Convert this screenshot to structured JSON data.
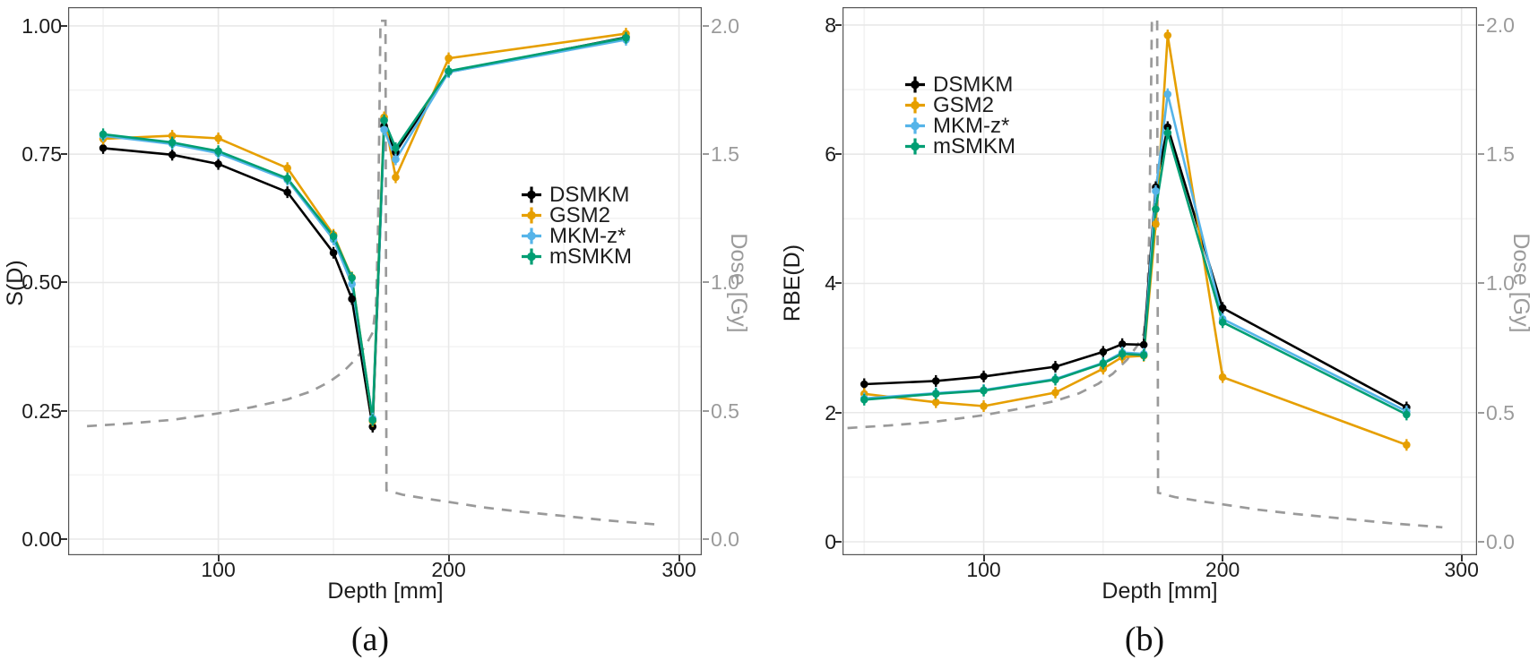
{
  "figure": {
    "captions": {
      "a": "(a)",
      "b": "(b)"
    },
    "colors": {
      "background": "#ffffff",
      "grid_major": "#e8e8e8",
      "grid_minor": "#f3f3f3",
      "panel_border": "#555555",
      "dose_line": "#9a9a9a",
      "axis_text": "#1d1d1d",
      "secondary_axis_text": "#9b9b9b"
    }
  },
  "legend": {
    "entries": [
      {
        "label": "DSMKM",
        "color": "#000000"
      },
      {
        "label": "GSM2",
        "color": "#E69F00"
      },
      {
        "label": "MKM-z*",
        "color": "#56B4E9"
      },
      {
        "label": "mSMKM",
        "color": "#009E73"
      }
    ]
  },
  "chart_data": [
    {
      "type": "line",
      "panel": "a",
      "xlabel": "Depth [mm]",
      "ylabel": "S(D)",
      "y2label": "Dose [Gy]",
      "xlim": [
        34.8,
        309.9
      ],
      "ylim": [
        -0.0314,
        1.0366
      ],
      "y2lim": [
        -0.0628,
        2.0732
      ],
      "xticks": {
        "major": [
          100,
          200,
          300
        ],
        "minor": [
          50,
          150,
          250
        ],
        "labels": [
          "100",
          "200",
          "300"
        ]
      },
      "yticks": {
        "major": [
          0,
          0.25,
          0.5,
          0.75,
          1.0
        ],
        "minor": [
          0.125,
          0.375,
          0.625,
          0.875
        ],
        "labels": [
          "0.00",
          "0.25",
          "0.50",
          "0.75",
          "1.00"
        ]
      },
      "y2ticks": {
        "major": [
          0,
          0.5,
          1.0,
          1.5,
          2.0
        ],
        "labels": [
          "0.0",
          "0.5",
          "1.0",
          "1.5",
          "2.0"
        ]
      },
      "x": [
        50,
        80,
        100,
        130,
        150,
        158,
        167,
        172,
        177,
        200,
        277
      ],
      "series": [
        {
          "name": "DSMKM",
          "color": "#000000",
          "values": [
            0.762,
            0.749,
            0.731,
            0.676,
            0.558,
            0.468,
            0.219,
            0.805,
            0.754,
            0.91,
            0.978
          ]
        },
        {
          "name": "GSM2",
          "color": "#E69F00",
          "values": [
            0.78,
            0.786,
            0.781,
            0.723,
            0.593,
            0.51,
            0.23,
            0.822,
            0.705,
            0.937,
            0.985
          ]
        },
        {
          "name": "MKM-z*",
          "color": "#56B4E9",
          "values": [
            0.786,
            0.77,
            0.752,
            0.7,
            0.584,
            0.497,
            0.235,
            0.798,
            0.74,
            0.91,
            0.973
          ]
        },
        {
          "name": "mSMKM",
          "color": "#009E73",
          "values": [
            0.789,
            0.773,
            0.756,
            0.703,
            0.59,
            0.509,
            0.232,
            0.816,
            0.762,
            0.912,
            0.977
          ]
        }
      ],
      "dose_curve_gy": [
        [
          43,
          0.44
        ],
        [
          60,
          0.45
        ],
        [
          80,
          0.465
        ],
        [
          100,
          0.49
        ],
        [
          115,
          0.515
        ],
        [
          130,
          0.545
        ],
        [
          140,
          0.575
        ],
        [
          148,
          0.612
        ],
        [
          154,
          0.65
        ],
        [
          160,
          0.705
        ],
        [
          164,
          0.755
        ],
        [
          167,
          0.805
        ],
        [
          168.5,
          0.92
        ],
        [
          169.3,
          1.2
        ],
        [
          170,
          1.7
        ],
        [
          170.4,
          2.02
        ],
        [
          172.6,
          2.02
        ],
        [
          173.0,
          0.19
        ],
        [
          180,
          0.173
        ],
        [
          190,
          0.158
        ],
        [
          200,
          0.145
        ],
        [
          215,
          0.124
        ],
        [
          230,
          0.108
        ],
        [
          250,
          0.09
        ],
        [
          270,
          0.072
        ],
        [
          292,
          0.056
        ]
      ]
    },
    {
      "type": "line",
      "panel": "b",
      "xlabel": "Depth [mm]",
      "ylabel": "RBE(D)",
      "y2label": "Dose [Gy]",
      "xlim": [
        40.9,
        306.5
      ],
      "ylim": [
        -0.208,
        8.277
      ],
      "y2lim": [
        -0.052,
        2.069
      ],
      "xticks": {
        "major": [
          100,
          200,
          300
        ],
        "minor": [
          50,
          150,
          250
        ],
        "labels": [
          "100",
          "200",
          "300"
        ]
      },
      "yticks": {
        "major": [
          0,
          2,
          4,
          6,
          8
        ],
        "minor": [
          1,
          3,
          5,
          7
        ],
        "labels": [
          "0",
          "2",
          "4",
          "6",
          "8"
        ]
      },
      "y2ticks": {
        "major": [
          0,
          0.5,
          1.0,
          1.5,
          2.0
        ],
        "labels": [
          "0.0",
          "0.5",
          "1.0",
          "1.5",
          "2.0"
        ]
      },
      "x": [
        50,
        80,
        100,
        130,
        150,
        158,
        167,
        172,
        177,
        200,
        277
      ],
      "series": [
        {
          "name": "DSMKM",
          "color": "#000000",
          "values": [
            2.44,
            2.49,
            2.56,
            2.71,
            2.94,
            3.06,
            3.05,
            5.49,
            6.42,
            3.62,
            2.08
          ]
        },
        {
          "name": "GSM2",
          "color": "#E69F00",
          "values": [
            2.29,
            2.16,
            2.1,
            2.31,
            2.68,
            2.86,
            2.88,
            4.92,
            7.84,
            2.55,
            1.5
          ]
        },
        {
          "name": "MKM-z*",
          "color": "#56B4E9",
          "values": [
            2.22,
            2.3,
            2.35,
            2.52,
            2.77,
            2.93,
            2.91,
            5.43,
            6.93,
            3.45,
            2.02
          ]
        },
        {
          "name": "mSMKM",
          "color": "#009E73",
          "values": [
            2.2,
            2.29,
            2.34,
            2.51,
            2.76,
            2.91,
            2.89,
            5.15,
            6.33,
            3.4,
            1.97
          ]
        }
      ],
      "dose_curve_gy": [
        [
          43,
          0.44
        ],
        [
          60,
          0.45
        ],
        [
          80,
          0.465
        ],
        [
          100,
          0.49
        ],
        [
          115,
          0.515
        ],
        [
          130,
          0.545
        ],
        [
          140,
          0.575
        ],
        [
          148,
          0.612
        ],
        [
          154,
          0.65
        ],
        [
          160,
          0.705
        ],
        [
          164,
          0.755
        ],
        [
          167,
          0.805
        ],
        [
          168.5,
          0.92
        ],
        [
          169.3,
          1.2
        ],
        [
          170,
          1.7
        ],
        [
          170.4,
          2.02
        ],
        [
          172.6,
          2.02
        ],
        [
          173.0,
          0.19
        ],
        [
          180,
          0.173
        ],
        [
          190,
          0.158
        ],
        [
          200,
          0.145
        ],
        [
          215,
          0.124
        ],
        [
          230,
          0.108
        ],
        [
          250,
          0.09
        ],
        [
          270,
          0.072
        ],
        [
          292,
          0.056
        ]
      ]
    }
  ]
}
